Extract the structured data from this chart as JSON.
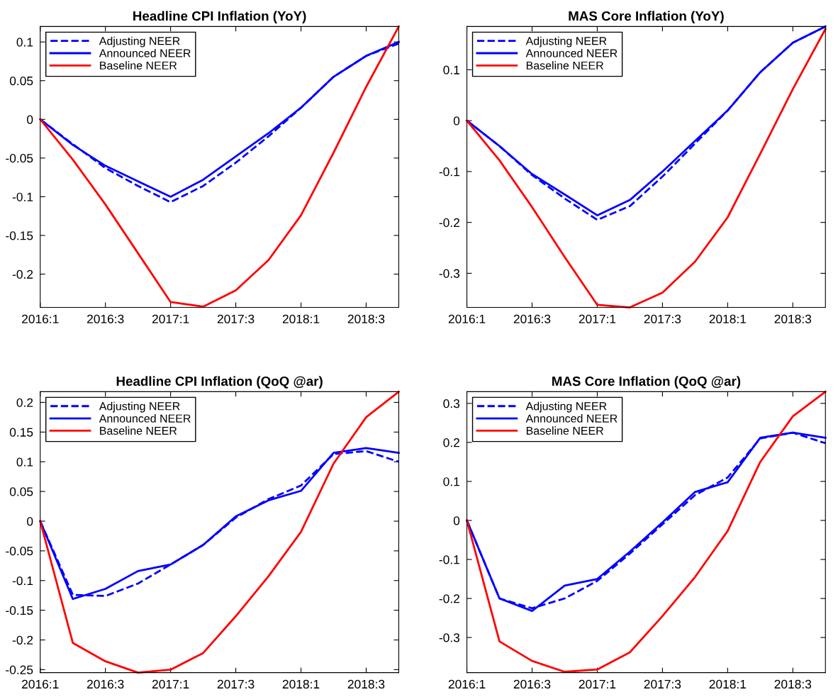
{
  "chart_data": [
    {
      "type": "line",
      "title": "Headline CPI Inflation (YoY)",
      "categories": [
        "2016:1",
        null,
        "2016:3",
        null,
        "2017:1",
        null,
        "2017:3",
        null,
        "2018:1",
        null,
        "2018:3",
        null
      ],
      "ylim": [
        -0.243,
        0.12
      ],
      "yticks": [
        -0.2,
        -0.15,
        -0.1,
        -0.05,
        0,
        0.05,
        0.1
      ],
      "grid": false,
      "legend": "top left",
      "series": [
        {
          "name": "Adjusting NEER",
          "color": "#0000ff",
          "line_style": "dashed",
          "values": [
            0,
            -0.032,
            -0.063,
            -0.086,
            -0.107,
            -0.086,
            -0.056,
            -0.022,
            0.015,
            0.055,
            0.082,
            0.098
          ]
        },
        {
          "name": "Announced NEER",
          "color": "#0000ff",
          "line_style": "solid",
          "values": [
            0,
            -0.033,
            -0.06,
            -0.08,
            -0.1,
            -0.078,
            -0.048,
            -0.018,
            0.015,
            0.055,
            0.082,
            0.1
          ]
        },
        {
          "name": "Baseline NEER",
          "color": "#ff0000",
          "line_style": "solid",
          "values": [
            0,
            -0.052,
            -0.11,
            -0.173,
            -0.236,
            -0.242,
            -0.221,
            -0.182,
            -0.124,
            -0.043,
            0.042,
            0.12
          ]
        }
      ]
    },
    {
      "type": "line",
      "title": "MAS Core Inflation (YoY)",
      "categories": [
        "2016:1",
        null,
        "2016:3",
        null,
        "2017:1",
        null,
        "2017:3",
        null,
        "2018:1",
        null,
        "2018:3",
        null
      ],
      "ylim": [
        -0.367,
        0.185
      ],
      "yticks": [
        -0.3,
        -0.2,
        -0.1,
        0,
        0.1
      ],
      "grid": false,
      "legend": "top left",
      "series": [
        {
          "name": "Adjusting NEER",
          "color": "#0000ff",
          "line_style": "dashed",
          "values": [
            0,
            -0.05,
            -0.107,
            -0.153,
            -0.195,
            -0.168,
            -0.11,
            -0.045,
            0.02,
            0.095,
            0.153,
            0.185
          ]
        },
        {
          "name": "Announced NEER",
          "color": "#0000ff",
          "line_style": "solid",
          "values": [
            0,
            -0.05,
            -0.105,
            -0.145,
            -0.186,
            -0.156,
            -0.1,
            -0.04,
            0.02,
            0.095,
            0.153,
            0.185
          ]
        },
        {
          "name": "Baseline NEER",
          "color": "#ff0000",
          "line_style": "solid",
          "values": [
            0,
            -0.078,
            -0.17,
            -0.268,
            -0.362,
            -0.367,
            -0.338,
            -0.277,
            -0.19,
            -0.065,
            0.062,
            0.18
          ]
        }
      ]
    },
    {
      "type": "line",
      "title": "Headline CPI Inflation (QoQ @ar)",
      "categories": [
        "2016:1",
        null,
        "2016:3",
        null,
        "2017:1",
        null,
        "2017:3",
        null,
        "2018:1",
        null,
        "2018:3",
        null
      ],
      "ylim": [
        -0.255,
        0.218
      ],
      "yticks": [
        -0.25,
        -0.2,
        -0.15,
        -0.1,
        -0.05,
        0,
        0.05,
        0.1,
        0.15,
        0.2
      ],
      "grid": false,
      "legend": "top left",
      "series": [
        {
          "name": "Adjusting NEER",
          "color": "#0000ff",
          "line_style": "dashed",
          "values": [
            0,
            -0.124,
            -0.126,
            -0.105,
            -0.073,
            -0.04,
            0.006,
            0.037,
            0.06,
            0.113,
            0.118,
            0.1
          ]
        },
        {
          "name": "Announced NEER",
          "color": "#0000ff",
          "line_style": "solid",
          "values": [
            0,
            -0.131,
            -0.114,
            -0.084,
            -0.073,
            -0.04,
            0.008,
            0.035,
            0.051,
            0.115,
            0.123,
            0.115
          ]
        },
        {
          "name": "Baseline NEER",
          "color": "#ff0000",
          "line_style": "solid",
          "values": [
            0,
            -0.205,
            -0.236,
            -0.255,
            -0.25,
            -0.222,
            -0.16,
            -0.093,
            -0.018,
            0.097,
            0.175,
            0.218
          ]
        }
      ]
    },
    {
      "type": "line",
      "title": "MAS Core Inflation (QoQ @ar)",
      "categories": [
        "2016:1",
        null,
        "2016:3",
        null,
        "2017:1",
        null,
        "2017:3",
        null,
        "2018:1",
        null,
        "2018:3",
        null
      ],
      "ylim": [
        -0.39,
        0.33
      ],
      "yticks": [
        -0.3,
        -0.2,
        -0.1,
        0,
        0.1,
        0.2,
        0.3
      ],
      "grid": false,
      "legend": "top left",
      "series": [
        {
          "name": "Adjusting NEER",
          "color": "#0000ff",
          "line_style": "dashed",
          "values": [
            0,
            -0.2,
            -0.225,
            -0.2,
            -0.155,
            -0.085,
            -0.01,
            0.065,
            0.11,
            0.21,
            0.225,
            0.198
          ]
        },
        {
          "name": "Announced NEER",
          "color": "#0000ff",
          "line_style": "solid",
          "values": [
            0,
            -0.2,
            -0.232,
            -0.167,
            -0.15,
            -0.08,
            -0.005,
            0.073,
            0.098,
            0.212,
            0.225,
            0.212
          ]
        },
        {
          "name": "Baseline NEER",
          "color": "#ff0000",
          "line_style": "solid",
          "values": [
            0,
            -0.31,
            -0.36,
            -0.388,
            -0.382,
            -0.338,
            -0.245,
            -0.145,
            -0.027,
            0.15,
            0.267,
            0.33
          ]
        }
      ]
    }
  ]
}
